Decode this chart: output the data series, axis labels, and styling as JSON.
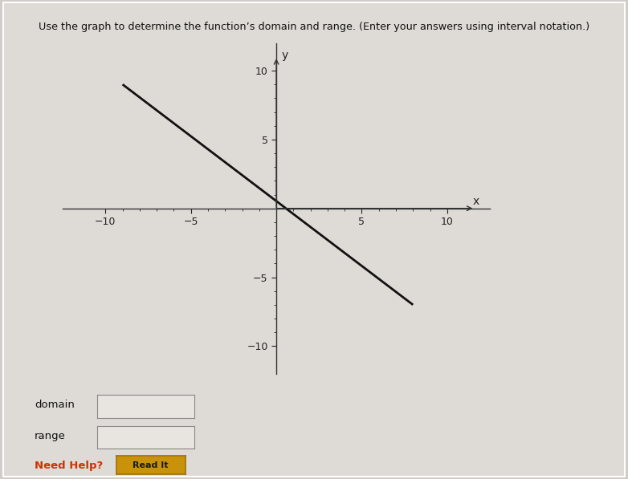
{
  "title": "Use the graph to determine the function’s domain and range. (Enter your answers using interval notation.)",
  "bg_color": "#ccc8c3",
  "plot_bg_color": "#ccc8c3",
  "line_x": [
    -9,
    8
  ],
  "line_y": [
    9,
    -7
  ],
  "line_color": "#111111",
  "line_width": 2.0,
  "xlim": [
    -12.5,
    12.5
  ],
  "ylim": [
    -12,
    12
  ],
  "xticks": [
    -10,
    -5,
    5,
    10
  ],
  "yticks": [
    -10,
    -5,
    5,
    10
  ],
  "xlabel": "x",
  "ylabel": "y",
  "axis_color": "#333333",
  "tick_color": "#222222",
  "tick_label_size": 9,
  "domain_label": "domain",
  "range_label": "range",
  "need_help_text": "Need Help?",
  "need_help_color": "#cc3300",
  "read_it_text": "Read It",
  "read_it_bg": "#c8920a",
  "read_it_border": "#a07008",
  "outer_bg": "#d0ccc7",
  "inner_bg": "#ccc8c3",
  "border_color": "#bbbbbb"
}
